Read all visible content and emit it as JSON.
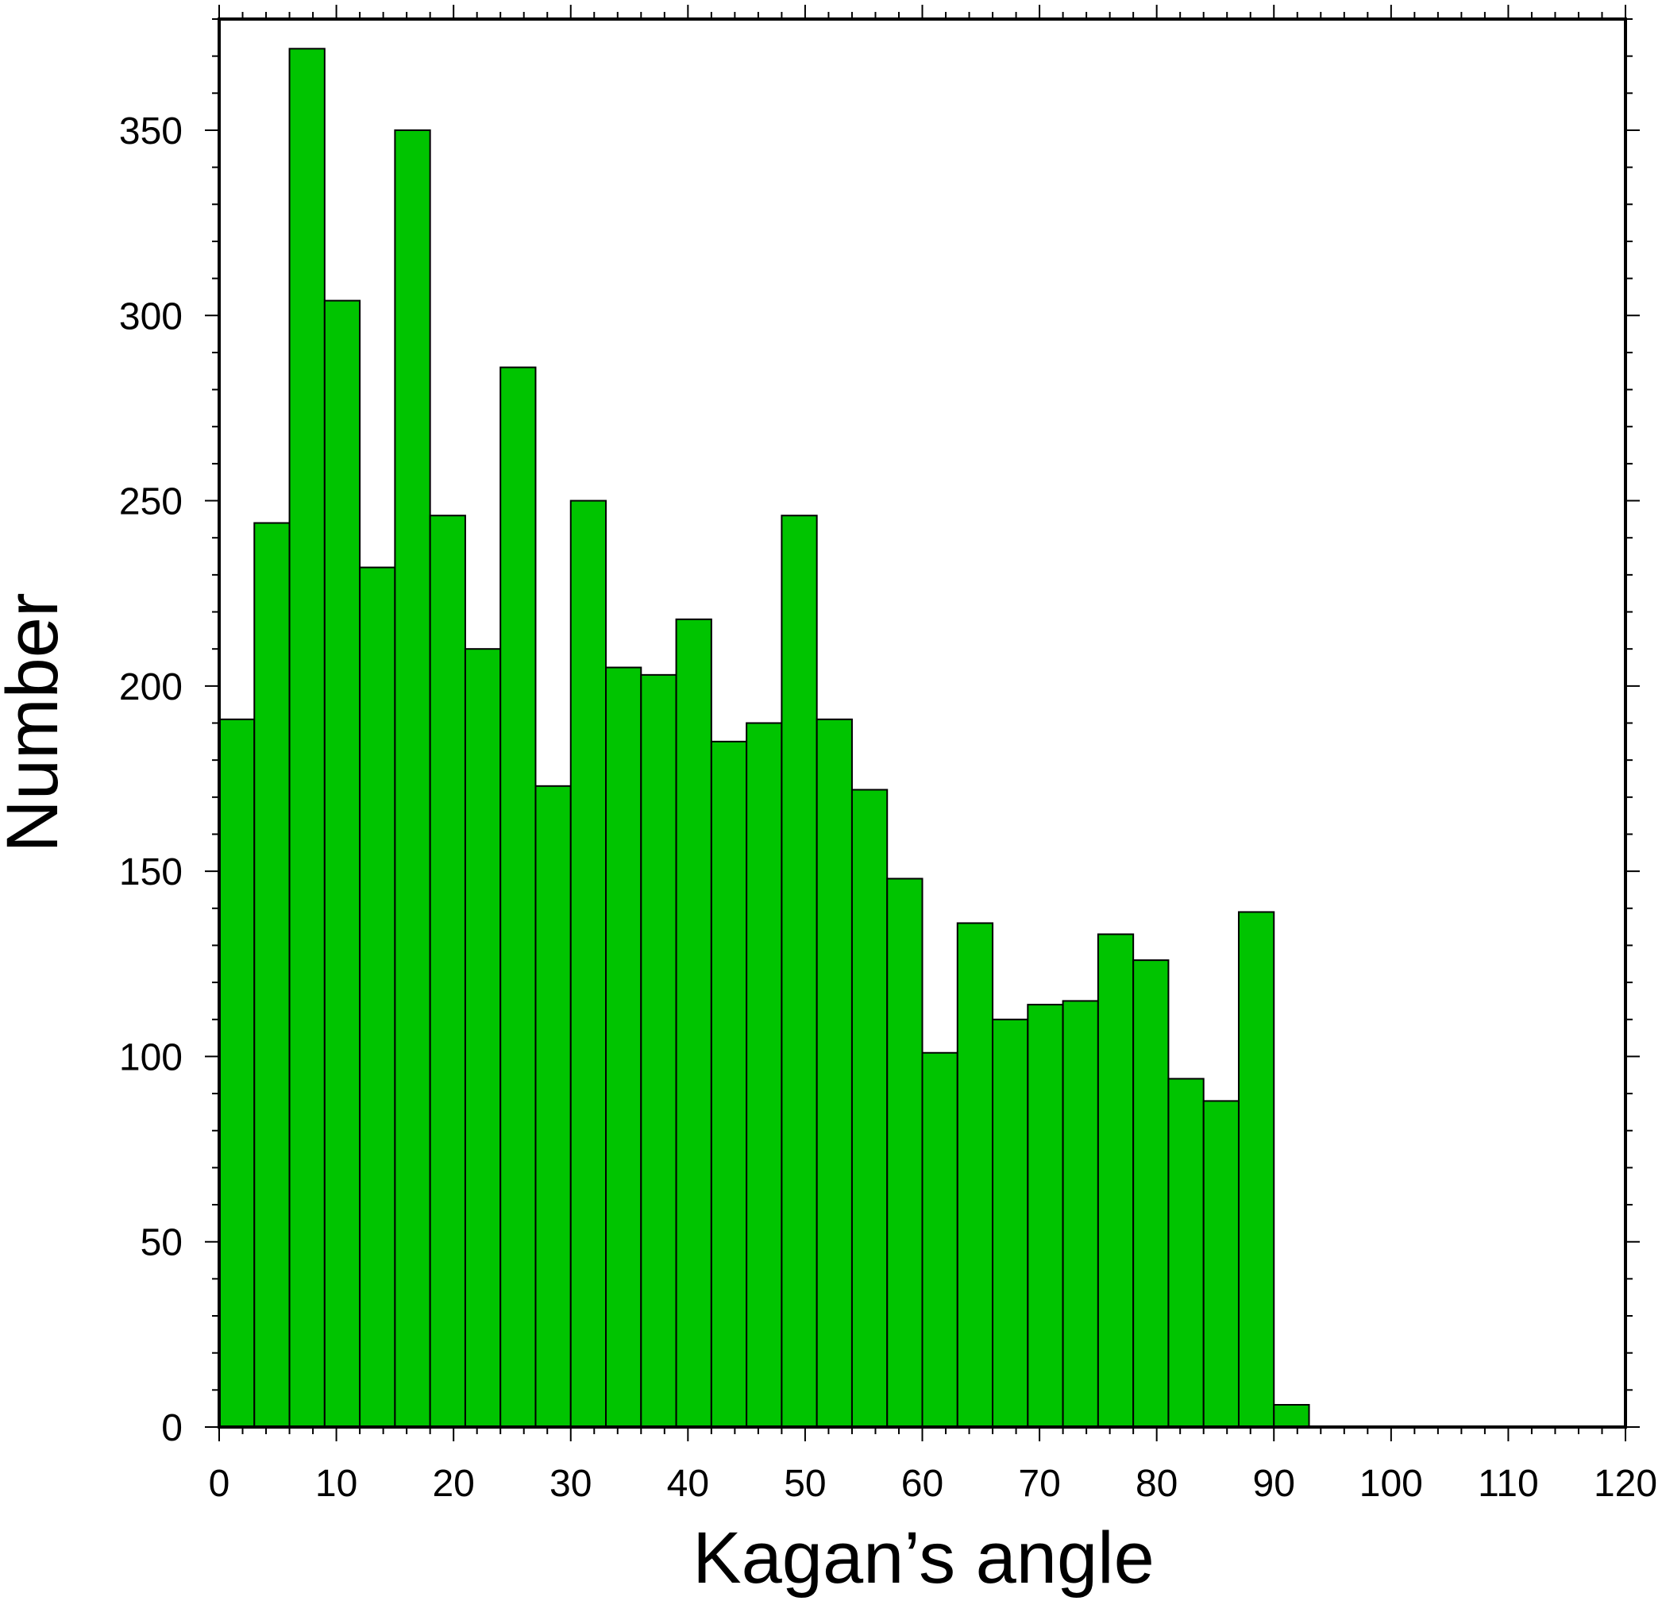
{
  "chart_data": {
    "type": "bar",
    "xlabel": "Kagan’s angle",
    "ylabel": "Number",
    "xlim": [
      0,
      120
    ],
    "ylim": [
      0,
      380
    ],
    "bin_width": 3,
    "x_ticks": [
      "0",
      "10",
      "20",
      "30",
      "40",
      "50",
      "60",
      "70",
      "80",
      "90",
      "100",
      "110",
      "120"
    ],
    "y_ticks": [
      "0",
      "50",
      "100",
      "150",
      "200",
      "250",
      "300",
      "350"
    ],
    "bins": [
      {
        "start": 0,
        "value": 191
      },
      {
        "start": 3,
        "value": 244
      },
      {
        "start": 6,
        "value": 372
      },
      {
        "start": 9,
        "value": 304
      },
      {
        "start": 12,
        "value": 232
      },
      {
        "start": 15,
        "value": 350
      },
      {
        "start": 18,
        "value": 246
      },
      {
        "start": 21,
        "value": 210
      },
      {
        "start": 24,
        "value": 286
      },
      {
        "start": 27,
        "value": 173
      },
      {
        "start": 30,
        "value": 250
      },
      {
        "start": 33,
        "value": 205
      },
      {
        "start": 36,
        "value": 203
      },
      {
        "start": 39,
        "value": 218
      },
      {
        "start": 42,
        "value": 185
      },
      {
        "start": 45,
        "value": 190
      },
      {
        "start": 48,
        "value": 246
      },
      {
        "start": 51,
        "value": 191
      },
      {
        "start": 54,
        "value": 172
      },
      {
        "start": 57,
        "value": 148
      },
      {
        "start": 60,
        "value": 101
      },
      {
        "start": 63,
        "value": 136
      },
      {
        "start": 66,
        "value": 110
      },
      {
        "start": 69,
        "value": 114
      },
      {
        "start": 72,
        "value": 115
      },
      {
        "start": 75,
        "value": 133
      },
      {
        "start": 78,
        "value": 126
      },
      {
        "start": 81,
        "value": 94
      },
      {
        "start": 84,
        "value": 88
      },
      {
        "start": 87,
        "value": 139
      },
      {
        "start": 90,
        "value": 6
      }
    ],
    "bar_color": "#00c400",
    "bar_edge_color": "#000000",
    "grid": false,
    "legend": "none"
  }
}
